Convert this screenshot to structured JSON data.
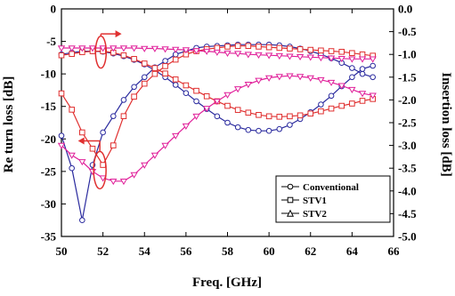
{
  "chart_data": {
    "type": "line",
    "xlabel": "Freq. [GHz]",
    "ylabel_left": "Re turn loss [dB]",
    "ylabel_right": "Insertion loss [dB]",
    "xlim": [
      50,
      66
    ],
    "ylim_left": [
      -35,
      0
    ],
    "ylim_right": [
      -5.0,
      0.0
    ],
    "x_ticks": [
      "50",
      "52",
      "54",
      "56",
      "58",
      "60",
      "62",
      "64",
      "66"
    ],
    "y_left_ticks": [
      "0",
      "-5",
      "-10",
      "-15",
      "-20",
      "-25",
      "-30",
      "-35"
    ],
    "y_right_ticks": [
      "0.0",
      "-0.5",
      "-1.0",
      "-1.5",
      "-2.0",
      "-2.5",
      "-3.0",
      "-3.5",
      "-4.0",
      "-4.5",
      "-5.0"
    ],
    "grid": false,
    "legend_position": "bottom-right",
    "legend": [
      {
        "label": "Conventional",
        "marker": "circle"
      },
      {
        "label": "STV1",
        "marker": "square"
      },
      {
        "label": "STV2",
        "marker": "triangle"
      }
    ],
    "colors": {
      "return_loss": "#1a1aa0",
      "insertion_loss": "#e03030",
      "magenta": "#e0209a",
      "annotation": "#e03030"
    },
    "series": [
      {
        "name": "Conventional",
        "marker": "circle",
        "axis": "left",
        "color": "#2a2a9e",
        "x": [
          50,
          50.5,
          51,
          51.5,
          52,
          52.5,
          53,
          53.5,
          54,
          54.5,
          55,
          55.5,
          56,
          56.5,
          57,
          57.5,
          58,
          58.5,
          59,
          59.5,
          60,
          60.5,
          61,
          61.5,
          62,
          62.5,
          63,
          63.5,
          64,
          64.5,
          65
        ],
        "y": [
          -19.5,
          -24.5,
          -32.5,
          -24,
          -19,
          -16.5,
          -14,
          -12,
          -10.5,
          -9,
          -8,
          -7,
          -6.5,
          -6,
          -5.8,
          -5.7,
          -5.6,
          -5.5,
          -5.5,
          -5.5,
          -5.5,
          -5.6,
          -5.8,
          -6.1,
          -6.5,
          -7,
          -7.6,
          -8.3,
          -9.1,
          -10,
          -10.5
        ]
      },
      {
        "name": "Conventional",
        "marker": "circle",
        "axis": "right",
        "color": "#2a2a9e",
        "x": [
          50,
          50.5,
          51,
          51.5,
          52,
          52.5,
          53,
          53.5,
          54,
          54.5,
          55,
          55.5,
          56,
          56.5,
          57,
          57.5,
          58,
          58.5,
          59,
          59.5,
          60,
          60.5,
          61,
          61.5,
          62,
          62.5,
          63,
          63.5,
          64,
          64.5,
          65
        ],
        "y": [
          -1.0,
          -0.96,
          -0.93,
          -0.93,
          -0.94,
          -0.98,
          -1.04,
          -1.12,
          -1.22,
          -1.35,
          -1.5,
          -1.67,
          -1.85,
          -2.03,
          -2.2,
          -2.36,
          -2.5,
          -2.6,
          -2.66,
          -2.68,
          -2.68,
          -2.64,
          -2.55,
          -2.42,
          -2.27,
          -2.1,
          -1.91,
          -1.7,
          -1.5,
          -1.32,
          -1.25
        ]
      },
      {
        "name": "STV1",
        "marker": "square",
        "axis": "left",
        "color": "#e03030",
        "x": [
          50,
          50.5,
          51,
          51.5,
          52,
          52.5,
          53,
          53.5,
          54,
          54.5,
          55,
          55.5,
          56,
          56.5,
          57,
          57.5,
          58,
          58.5,
          59,
          59.5,
          60,
          60.5,
          61,
          61.5,
          62,
          62.5,
          63,
          63.5,
          64,
          64.5,
          65
        ],
        "y": [
          -13,
          -15.5,
          -19,
          -21.5,
          -24,
          -21,
          -16.5,
          -13.5,
          -11.5,
          -10,
          -8.8,
          -7.8,
          -7,
          -6.5,
          -6.2,
          -6,
          -5.8,
          -5.7,
          -5.7,
          -5.8,
          -5.9,
          -6,
          -6.1,
          -6.2,
          -6.3,
          -6.4,
          -6.5,
          -6.6,
          -6.8,
          -7,
          -7.2
        ]
      },
      {
        "name": "STV1",
        "marker": "square",
        "axis": "right",
        "color": "#e03030",
        "x": [
          50,
          50.5,
          51,
          51.5,
          52,
          52.5,
          53,
          53.5,
          54,
          54.5,
          55,
          55.5,
          56,
          56.5,
          57,
          57.5,
          58,
          58.5,
          59,
          59.5,
          60,
          60.5,
          61,
          61.5,
          62,
          62.5,
          63,
          63.5,
          64,
          64.5,
          65
        ],
        "y": [
          -1.02,
          -0.99,
          -0.95,
          -0.93,
          -0.93,
          -0.96,
          -1.02,
          -1.1,
          -1.2,
          -1.3,
          -1.42,
          -1.55,
          -1.68,
          -1.8,
          -1.92,
          -2.03,
          -2.13,
          -2.22,
          -2.28,
          -2.33,
          -2.36,
          -2.37,
          -2.36,
          -2.34,
          -2.3,
          -2.25,
          -2.19,
          -2.13,
          -2.08,
          -2.02,
          -1.98
        ]
      },
      {
        "name": "STV2",
        "marker": "triangle",
        "axis": "left",
        "color": "#e0209a",
        "x": [
          50,
          50.5,
          51,
          51.5,
          52,
          52.5,
          53,
          53.5,
          54,
          54.5,
          55,
          55.5,
          56,
          56.5,
          57,
          57.5,
          58,
          58.5,
          59,
          59.5,
          60,
          60.5,
          61,
          61.5,
          62,
          62.5,
          63,
          63.5,
          64,
          64.5,
          65
        ],
        "y": [
          -21,
          -22.5,
          -23.5,
          -25,
          -26,
          -26.5,
          -26.5,
          -25.5,
          -24,
          -22.5,
          -21,
          -19.5,
          -18,
          -16.5,
          -15.3,
          -14.2,
          -13.2,
          -12.3,
          -11.6,
          -11,
          -10.6,
          -10.4,
          -10.3,
          -10.4,
          -10.6,
          -10.9,
          -11.3,
          -11.8,
          -12.4,
          -13,
          -13.3
        ]
      },
      {
        "name": "STV2",
        "marker": "triangle",
        "axis": "right",
        "color": "#e0209a",
        "x": [
          50,
          50.5,
          51,
          51.5,
          52,
          52.5,
          53,
          53.5,
          54,
          54.5,
          55,
          55.5,
          56,
          56.5,
          57,
          57.5,
          58,
          58.5,
          59,
          59.5,
          60,
          60.5,
          61,
          61.5,
          62,
          62.5,
          63,
          63.5,
          64,
          64.5,
          65
        ],
        "y": [
          -0.86,
          -0.86,
          -0.86,
          -0.86,
          -0.86,
          -0.86,
          -0.86,
          -0.86,
          -0.87,
          -0.87,
          -0.88,
          -0.89,
          -0.9,
          -0.92,
          -0.93,
          -0.95,
          -0.97,
          -0.98,
          -1.0,
          -1.01,
          -1.02,
          -1.03,
          -1.04,
          -1.05,
          -1.06,
          -1.07,
          -1.08,
          -1.09,
          -1.1,
          -1.1,
          -1.1
        ]
      }
    ]
  }
}
